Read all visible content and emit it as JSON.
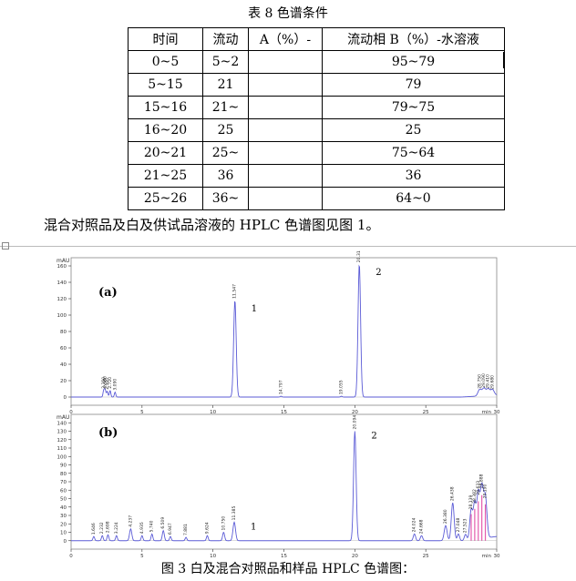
{
  "table_title": "表 8 色谱条件",
  "table": {
    "headers": [
      "时间",
      "流动",
      "A（%）-",
      "流动相 B（%）-水溶液"
    ],
    "rows": [
      [
        "0~5",
        "5~2",
        "",
        "95~79"
      ],
      [
        "5~15",
        "21",
        "",
        "79"
      ],
      [
        "15~16",
        "21~",
        "",
        "79~75"
      ],
      [
        "16~20",
        "25",
        "",
        "25"
      ],
      [
        "20~21",
        "25~",
        "",
        "75~64"
      ],
      [
        "21~25",
        "36",
        "",
        "36"
      ],
      [
        "25~26",
        "36~",
        "",
        "64~0"
      ]
    ]
  },
  "paragraph": "混合对照品及白及供试品溶液的 HPLC 色谱图见图 1。",
  "figure_caption": "图 3 白及混合对照品和样品 HPLC 色谱图：",
  "colors": {
    "trace": "#5b5bd6",
    "cluster": "#e040a0",
    "axis": "#000000",
    "bg": "#ffffff"
  },
  "chart_data": [
    {
      "type": "line",
      "panel_label": "(a)",
      "ylabel": "mAU",
      "x_unit_label": "min",
      "xlim": [
        0,
        30
      ],
      "ylim": [
        -10,
        170
      ],
      "x_ticks": [
        0,
        5,
        10,
        15,
        20,
        25,
        30
      ],
      "y_ticks": [
        0,
        20,
        40,
        60,
        80,
        100,
        120,
        140,
        160
      ],
      "peaks": [
        {
          "rt": 2.3,
          "height": 8,
          "width": 0.05,
          "label": "2.250"
        },
        {
          "rt": 2.4,
          "height": 9,
          "width": 0.05,
          "label": "2.380"
        },
        {
          "rt": 2.55,
          "height": 7,
          "width": 0.05,
          "label": "2.510"
        },
        {
          "rt": 2.75,
          "height": 8,
          "width": 0.05,
          "label": "2.720"
        },
        {
          "rt": 3.1,
          "height": 6,
          "width": 0.05,
          "label": "3.090"
        },
        {
          "rt": 11.547,
          "height": 118,
          "width": 0.09,
          "label": "11.547",
          "number": "1"
        },
        {
          "rt": 14.797,
          "height": 1,
          "width": 0.06,
          "label": "14.797"
        },
        {
          "rt": 19.055,
          "height": 1,
          "width": 0.06,
          "label": "19.055"
        },
        {
          "rt": 20.315,
          "height": 162,
          "width": 0.09,
          "label": "20.315",
          "number": "2"
        },
        {
          "rt": 28.8,
          "height": 8,
          "width": 0.12,
          "label": "28.750"
        },
        {
          "rt": 29.1,
          "height": 9,
          "width": 0.12,
          "label": "29.090"
        },
        {
          "rt": 29.4,
          "height": 8,
          "width": 0.12,
          "label": "29.410"
        },
        {
          "rt": 29.7,
          "height": 7,
          "width": 0.12,
          "label": "29.680"
        }
      ]
    },
    {
      "type": "line",
      "panel_label": "(b)",
      "ylabel": "mAU",
      "x_unit_label": "min",
      "xlim": [
        0,
        30
      ],
      "ylim": [
        -10,
        150
      ],
      "x_ticks": [
        0,
        5,
        10,
        15,
        20,
        25,
        30
      ],
      "y_ticks": [
        0,
        10,
        20,
        30,
        40,
        50,
        60,
        70,
        80,
        90,
        100,
        110,
        120,
        130,
        140
      ],
      "peaks": [
        {
          "rt": 1.6,
          "height": 5,
          "width": 0.06,
          "label": "1.646"
        },
        {
          "rt": 2.2,
          "height": 6,
          "width": 0.06,
          "label": "2.232"
        },
        {
          "rt": 2.6,
          "height": 7,
          "width": 0.06,
          "label": "2.698"
        },
        {
          "rt": 3.2,
          "height": 6,
          "width": 0.06,
          "label": "3.224"
        },
        {
          "rt": 4.2,
          "height": 14,
          "width": 0.08,
          "label": "4.237"
        },
        {
          "rt": 5.0,
          "height": 6,
          "width": 0.06,
          "label": "4.935"
        },
        {
          "rt": 5.7,
          "height": 8,
          "width": 0.06,
          "label": "5.740"
        },
        {
          "rt": 6.5,
          "height": 12,
          "width": 0.07,
          "label": "6.509"
        },
        {
          "rt": 7.0,
          "height": 5,
          "width": 0.06,
          "label": "6.947"
        },
        {
          "rt": 8.1,
          "height": 4,
          "width": 0.06,
          "label": "7.881"
        },
        {
          "rt": 9.6,
          "height": 6,
          "width": 0.06,
          "label": "9.624"
        },
        {
          "rt": 10.75,
          "height": 10,
          "width": 0.07,
          "label": "10.750"
        },
        {
          "rt": 11.5,
          "height": 22,
          "width": 0.09,
          "label": "11.385",
          "number": "1"
        },
        {
          "rt": 20.0,
          "height": 130,
          "width": 0.09,
          "label": "20.094",
          "number": "2"
        },
        {
          "rt": 24.2,
          "height": 8,
          "width": 0.08,
          "label": "24.024"
        },
        {
          "rt": 24.7,
          "height": 6,
          "width": 0.08,
          "label": "24.668"
        },
        {
          "rt": 26.4,
          "height": 18,
          "width": 0.1,
          "label": "26.380"
        },
        {
          "rt": 26.9,
          "height": 45,
          "width": 0.1,
          "label": "26.438"
        },
        {
          "rt": 27.3,
          "height": 8,
          "width": 0.08,
          "label": "27.048"
        },
        {
          "rt": 27.8,
          "height": 7,
          "width": 0.08,
          "label": "27.523"
        },
        {
          "rt": 28.2,
          "height": 35,
          "width": 0.1,
          "label": "28.139"
        },
        {
          "rt": 28.45,
          "height": 42,
          "width": 0.1,
          "label": "28.382"
        },
        {
          "rt": 28.7,
          "height": 52,
          "width": 0.1,
          "label": "28.633"
        },
        {
          "rt": 28.95,
          "height": 60,
          "width": 0.11,
          "label": "28.888"
        },
        {
          "rt": 29.2,
          "height": 48,
          "width": 0.11,
          "label": "29.190"
        }
      ]
    }
  ]
}
